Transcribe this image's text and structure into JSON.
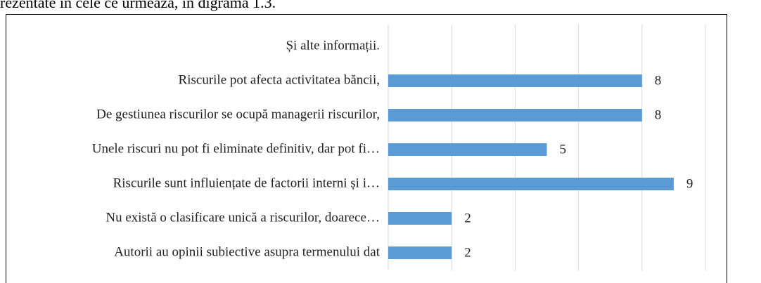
{
  "lead_text": "rezentate în cele ce urmează, în digrama 1.3.",
  "chart_data": {
    "type": "barh",
    "categories": [
      "Și alte informații.",
      "Riscurile pot afecta activitatea băncii,",
      "De gestiunea riscurilor se ocupă managerii riscurilor,",
      "Unele riscuri nu pot fi eliminate definitiv, dar pot fi…",
      "Riscurile sunt influiențate de factorii interni și i…",
      "Nu există o clasificare unică a riscurilor, doarece…",
      "Autorii au opinii subiective asupra termenului dat"
    ],
    "values": [
      null,
      8,
      8,
      5,
      9,
      2,
      2
    ],
    "color": "#5b9bd5",
    "xlim": [
      0,
      10
    ],
    "xticks": [
      0,
      2,
      4,
      6,
      8,
      10
    ],
    "grid": true
  }
}
